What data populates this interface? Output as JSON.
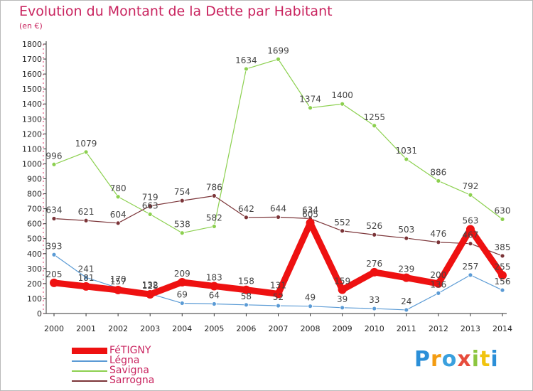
{
  "title": "Evolution du Montant de la Dette par Habitant",
  "unit": "(en €)",
  "brand": "Proxiti",
  "colors": {
    "title": "#c9245f",
    "axis": "#333333",
    "grid_dots": "#e23a6b",
    "label": "#444444"
  },
  "chart_data": {
    "type": "line",
    "title": "Evolution du Montant de la Dette par Habitant",
    "subtitle": "(en €)",
    "xlabel": "",
    "ylabel": "",
    "ylim": [
      0,
      1800
    ],
    "yticks": [
      "0",
      "100",
      "200",
      "300",
      "400",
      "500",
      "600",
      "700",
      "800",
      "900",
      "1000",
      "1100",
      "1200",
      "1300",
      "1400",
      "1500",
      "1600",
      "1700",
      "1800"
    ],
    "categories": [
      "2000",
      "2001",
      "2002",
      "2003",
      "2004",
      "2005",
      "2006",
      "2007",
      "2008",
      "2009",
      "2010",
      "2011",
      "2012",
      "2013",
      "2014"
    ],
    "legend_position": "bottom-left",
    "series": [
      {
        "name": "FéTIGNY",
        "color": "#ee1111",
        "style": "thick",
        "values": [
          205,
          181,
          157,
          128,
          209,
          183,
          158,
          131,
          605,
          159,
          276,
          239,
          200,
          563,
          255
        ],
        "labels": [
          "205",
          "181",
          "157",
          "128",
          "209",
          "183",
          "158",
          "131",
          "605",
          "159",
          "276",
          "239",
          "200",
          "563",
          "255"
        ]
      },
      {
        "name": "Légna",
        "color": "#5b9bd5",
        "style": "thin",
        "values": [
          393,
          241,
          170,
          132,
          69,
          64,
          58,
          52,
          49,
          39,
          33,
          24,
          136,
          257,
          156
        ],
        "labels": [
          "393",
          "241",
          "170",
          "132",
          "69",
          "64",
          "58",
          "52",
          "49",
          "39",
          "33",
          "24",
          "136",
          "257",
          "156"
        ]
      },
      {
        "name": "Savigna",
        "color": "#8cd04f",
        "style": "thin",
        "values": [
          996,
          1079,
          780,
          663,
          538,
          582,
          1634,
          1699,
          1374,
          1400,
          1255,
          1031,
          886,
          792,
          630
        ],
        "labels": [
          "996",
          "1079",
          "780",
          "663",
          "538",
          "582",
          "1634",
          "1699",
          "1374",
          "1400",
          "1255",
          "1031",
          "886",
          "792",
          "630"
        ]
      },
      {
        "name": "Sarrogna",
        "color": "#7b3438",
        "style": "thin",
        "values": [
          634,
          621,
          604,
          719,
          754,
          786,
          642,
          644,
          634,
          552,
          526,
          503,
          476,
          467,
          385
        ],
        "labels": [
          "634",
          "621",
          "604",
          "719",
          "754",
          "786",
          "642",
          "644",
          "634",
          "552",
          "526",
          "503",
          "476",
          "467",
          "385"
        ]
      }
    ]
  }
}
